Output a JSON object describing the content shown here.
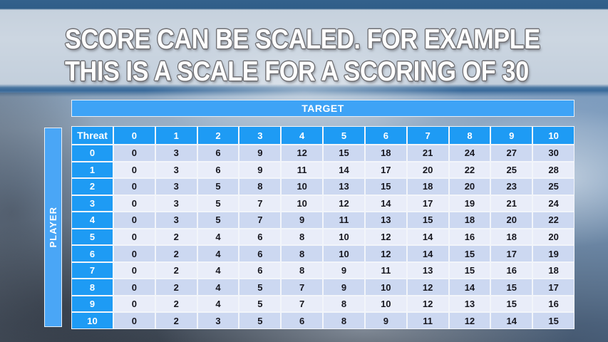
{
  "slide": {
    "title_line1": "SCORE CAN BE SCALED. FOR EXAMPLE",
    "title_line2": "THIS IS A SCALE FOR A SCORING OF 30"
  },
  "table": {
    "column_group_label": "TARGET",
    "row_group_label": "PLAYER",
    "corner_label": "Threat",
    "column_headers": [
      "0",
      "1",
      "2",
      "3",
      "4",
      "5",
      "6",
      "7",
      "8",
      "9",
      "10"
    ],
    "rows": [
      {
        "label": "0",
        "values": [
          0,
          3,
          6,
          9,
          12,
          15,
          18,
          21,
          24,
          27,
          30
        ]
      },
      {
        "label": "1",
        "values": [
          0,
          3,
          6,
          9,
          11,
          14,
          17,
          20,
          22,
          25,
          28
        ]
      },
      {
        "label": "2",
        "values": [
          0,
          3,
          5,
          8,
          10,
          13,
          15,
          18,
          20,
          23,
          25
        ]
      },
      {
        "label": "3",
        "values": [
          0,
          3,
          5,
          7,
          10,
          12,
          14,
          17,
          19,
          21,
          24
        ]
      },
      {
        "label": "4",
        "values": [
          0,
          3,
          5,
          7,
          9,
          11,
          13,
          15,
          18,
          20,
          22
        ]
      },
      {
        "label": "5",
        "values": [
          0,
          2,
          4,
          6,
          8,
          10,
          12,
          14,
          16,
          18,
          20
        ]
      },
      {
        "label": "6",
        "values": [
          0,
          2,
          4,
          6,
          8,
          10,
          12,
          14,
          15,
          17,
          19
        ]
      },
      {
        "label": "7",
        "values": [
          0,
          2,
          4,
          6,
          8,
          9,
          11,
          13,
          15,
          16,
          18
        ]
      },
      {
        "label": "8",
        "values": [
          0,
          2,
          4,
          5,
          7,
          9,
          10,
          12,
          14,
          15,
          17
        ]
      },
      {
        "label": "9",
        "values": [
          0,
          2,
          4,
          5,
          7,
          8,
          10,
          12,
          13,
          15,
          16
        ]
      },
      {
        "label": "10",
        "values": [
          0,
          2,
          3,
          5,
          6,
          8,
          9,
          11,
          12,
          14,
          15
        ]
      }
    ]
  },
  "colors": {
    "header_blue": "#1e9bf4",
    "banner_blue": "#3ea3f6",
    "row_even": "#ccd8f1",
    "row_odd": "#e9edf9",
    "gridline": "#f2f5fa",
    "title_text": "#ffffff",
    "title_outline": "#6e6e72",
    "sky_top_band": "#33618c",
    "sky_bottom": "#3c4551"
  }
}
